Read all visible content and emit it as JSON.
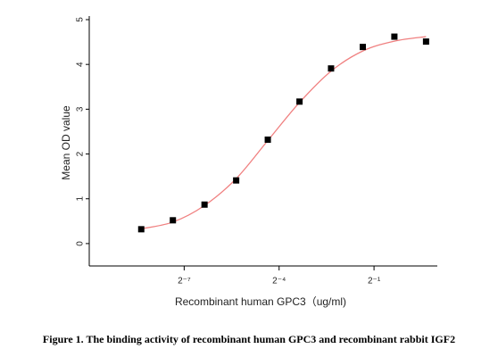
{
  "chart_data": {
    "type": "scatter",
    "ylabel": "Mean OD value",
    "xlabel": "Recombinant human  GPC3（ug/ml)",
    "caption": "Figure 1. The binding activity of recombinant human GPC3 and recombinant rabbit IGF2",
    "x": [
      0.00305,
      0.0061,
      0.0122,
      0.0244,
      0.0488,
      0.0977,
      0.195,
      0.391,
      0.781,
      1.5625
    ],
    "values": [
      0.32,
      0.52,
      0.87,
      1.41,
      2.32,
      3.17,
      3.91,
      4.39,
      4.62,
      4.51
    ],
    "color": "#000000",
    "fit": {
      "x": [
        0.00305,
        0.0061,
        0.0122,
        0.0244,
        0.0488,
        0.0977,
        0.195,
        0.391,
        0.781,
        1.5625
      ],
      "values": [
        0.33,
        0.48,
        0.85,
        1.45,
        2.3,
        3.15,
        3.85,
        4.3,
        4.52,
        4.62
      ],
      "color": "#f08080"
    },
    "xscale": "log2",
    "xlim": [
      0.0009765625,
      2
    ],
    "xticks": [
      {
        "value": 0.0078125,
        "label": "2⁻⁷"
      },
      {
        "value": 0.0625,
        "label": "2⁻⁴"
      },
      {
        "value": 0.5,
        "label": "2⁻¹"
      }
    ],
    "ylim": [
      -0.5,
      5
    ],
    "yticks": [
      0,
      1,
      2,
      3,
      4,
      5
    ]
  }
}
